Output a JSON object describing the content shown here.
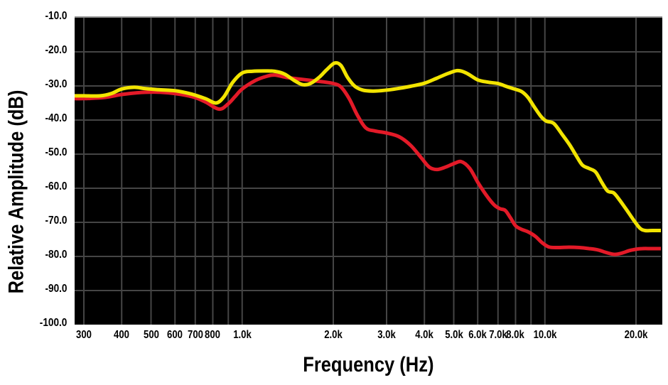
{
  "chart_data": {
    "type": "line",
    "title": "",
    "xlabel": "Frequency (Hz)",
    "ylabel": "Relative Amplitude (dB)",
    "x_scale": "log",
    "x_range_hz": [
      280,
      24400
    ],
    "ylim": [
      -100,
      -10
    ],
    "grid": true,
    "legend": "none",
    "background_color": "#000000",
    "grid_color": "#454545",
    "y_ticks": [
      {
        "db": -10,
        "label": "-10.0"
      },
      {
        "db": -20,
        "label": "-20.0"
      },
      {
        "db": -30,
        "label": "-30.0"
      },
      {
        "db": -40,
        "label": "-40.0"
      },
      {
        "db": -50,
        "label": "-50.0"
      },
      {
        "db": -60,
        "label": "-60.0"
      },
      {
        "db": -70,
        "label": "-70.0"
      },
      {
        "db": -80,
        "label": "-80.0"
      },
      {
        "db": -90,
        "label": "-90.0"
      },
      {
        "db": -100,
        "label": "-100.0"
      }
    ],
    "x_gridlines_hz": [
      300,
      400,
      500,
      600,
      700,
      800,
      900,
      1000,
      2000,
      3000,
      4000,
      5000,
      6000,
      7000,
      8000,
      9000,
      10000,
      20000
    ],
    "x_ticks": [
      {
        "hz": 300,
        "label": "300"
      },
      {
        "hz": 400,
        "label": "400"
      },
      {
        "hz": 500,
        "label": "500"
      },
      {
        "hz": 600,
        "label": "600"
      },
      {
        "hz": 700,
        "label": "700"
      },
      {
        "hz": 800,
        "label": "800"
      },
      {
        "hz": 1000,
        "label": "1.0k"
      },
      {
        "hz": 2000,
        "label": "2.0k"
      },
      {
        "hz": 3000,
        "label": "3.0k"
      },
      {
        "hz": 4000,
        "label": "4.0k"
      },
      {
        "hz": 5000,
        "label": "5.0k"
      },
      {
        "hz": 6000,
        "label": "6.0k"
      },
      {
        "hz": 7000,
        "label": "7.0k"
      },
      {
        "hz": 8000,
        "label": "8.0k"
      },
      {
        "hz": 10000,
        "label": "10.0k"
      },
      {
        "hz": 20000,
        "label": "20.0k"
      }
    ],
    "series": [
      {
        "name": "red-curve",
        "color": "#e31a28",
        "points": [
          [
            280,
            -33.7
          ],
          [
            300,
            -33.7
          ],
          [
            350,
            -33.4
          ],
          [
            400,
            -32.5
          ],
          [
            450,
            -32.0
          ],
          [
            510,
            -31.8
          ],
          [
            570,
            -32.0
          ],
          [
            630,
            -32.5
          ],
          [
            700,
            -33.4
          ],
          [
            760,
            -34.8
          ],
          [
            840,
            -36.8
          ],
          [
            900,
            -35.2
          ],
          [
            950,
            -33.0
          ],
          [
            1000,
            -30.9
          ],
          [
            1100,
            -28.5
          ],
          [
            1200,
            -27.2
          ],
          [
            1280,
            -26.8
          ],
          [
            1400,
            -27.5
          ],
          [
            1550,
            -28.0
          ],
          [
            1700,
            -28.4
          ],
          [
            1850,
            -28.8
          ],
          [
            2000,
            -29.3
          ],
          [
            2120,
            -30.3
          ],
          [
            2260,
            -33.8
          ],
          [
            2400,
            -38.5
          ],
          [
            2560,
            -42.3
          ],
          [
            2750,
            -43.2
          ],
          [
            3000,
            -43.8
          ],
          [
            3300,
            -44.9
          ],
          [
            3600,
            -47.4
          ],
          [
            3900,
            -51.0
          ],
          [
            4150,
            -53.8
          ],
          [
            4400,
            -54.5
          ],
          [
            4700,
            -53.8
          ],
          [
            5000,
            -52.8
          ],
          [
            5300,
            -52.2
          ],
          [
            5650,
            -54.2
          ],
          [
            6000,
            -58.2
          ],
          [
            6400,
            -62.0
          ],
          [
            6800,
            -64.9
          ],
          [
            7100,
            -66.0
          ],
          [
            7400,
            -66.5
          ],
          [
            7700,
            -68.7
          ],
          [
            8000,
            -71.0
          ],
          [
            8350,
            -72.0
          ],
          [
            8800,
            -72.8
          ],
          [
            9300,
            -74.1
          ],
          [
            9800,
            -76.0
          ],
          [
            10300,
            -77.2
          ],
          [
            11000,
            -77.4
          ],
          [
            12000,
            -77.3
          ],
          [
            13000,
            -77.4
          ],
          [
            14000,
            -77.7
          ],
          [
            15000,
            -78.1
          ],
          [
            16000,
            -78.9
          ],
          [
            17000,
            -79.4
          ],
          [
            18000,
            -79.0
          ],
          [
            19000,
            -78.3
          ],
          [
            20000,
            -77.9
          ],
          [
            21000,
            -77.7
          ],
          [
            22500,
            -77.7
          ],
          [
            24400,
            -77.7
          ]
        ]
      },
      {
        "name": "yellow-curve",
        "color": "#f2e400",
        "points": [
          [
            280,
            -32.9
          ],
          [
            300,
            -32.9
          ],
          [
            340,
            -32.9
          ],
          [
            370,
            -32.2
          ],
          [
            400,
            -30.9
          ],
          [
            440,
            -30.4
          ],
          [
            480,
            -30.8
          ],
          [
            530,
            -31.1
          ],
          [
            600,
            -31.4
          ],
          [
            660,
            -32.1
          ],
          [
            700,
            -32.7
          ],
          [
            760,
            -33.8
          ],
          [
            820,
            -35.0
          ],
          [
            870,
            -33.2
          ],
          [
            930,
            -29.0
          ],
          [
            1000,
            -26.2
          ],
          [
            1080,
            -25.7
          ],
          [
            1180,
            -25.6
          ],
          [
            1280,
            -25.7
          ],
          [
            1380,
            -26.5
          ],
          [
            1480,
            -28.3
          ],
          [
            1580,
            -29.6
          ],
          [
            1680,
            -29.3
          ],
          [
            1800,
            -27.4
          ],
          [
            1900,
            -25.3
          ],
          [
            2020,
            -23.3
          ],
          [
            2120,
            -24.0
          ],
          [
            2230,
            -27.5
          ],
          [
            2350,
            -30.0
          ],
          [
            2500,
            -31.2
          ],
          [
            2700,
            -31.5
          ],
          [
            2950,
            -31.3
          ],
          [
            3250,
            -30.8
          ],
          [
            3600,
            -30.1
          ],
          [
            4000,
            -29.2
          ],
          [
            4400,
            -27.7
          ],
          [
            4800,
            -26.3
          ],
          [
            5150,
            -25.5
          ],
          [
            5500,
            -26.2
          ],
          [
            6000,
            -28.2
          ],
          [
            6500,
            -28.9
          ],
          [
            7000,
            -29.3
          ],
          [
            7500,
            -30.2
          ],
          [
            8000,
            -31.0
          ],
          [
            8400,
            -31.7
          ],
          [
            8800,
            -33.4
          ],
          [
            9200,
            -36.0
          ],
          [
            9700,
            -38.9
          ],
          [
            10100,
            -40.3
          ],
          [
            10700,
            -41.0
          ],
          [
            11400,
            -44.2
          ],
          [
            12100,
            -47.4
          ],
          [
            12700,
            -50.5
          ],
          [
            13300,
            -53.2
          ],
          [
            14000,
            -54.2
          ],
          [
            14700,
            -55.2
          ],
          [
            15400,
            -58.2
          ],
          [
            16100,
            -60.8
          ],
          [
            16900,
            -61.4
          ],
          [
            17700,
            -63.6
          ],
          [
            18600,
            -66.3
          ],
          [
            19600,
            -69.2
          ],
          [
            20600,
            -71.7
          ],
          [
            21400,
            -72.4
          ],
          [
            22600,
            -72.4
          ],
          [
            24400,
            -72.4
          ]
        ]
      }
    ]
  }
}
